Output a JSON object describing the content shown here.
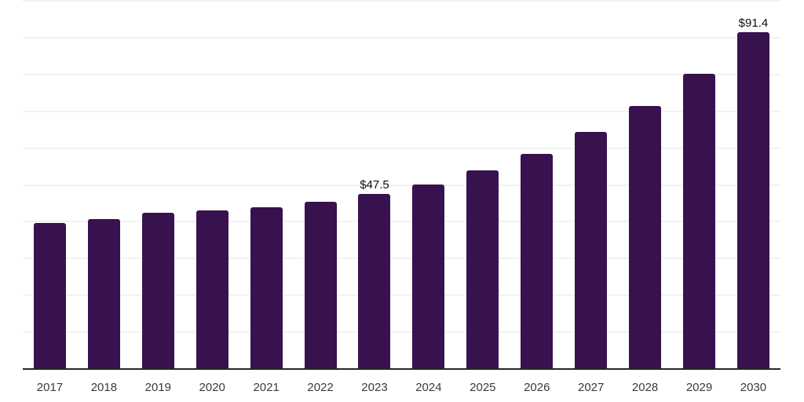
{
  "chart": {
    "background_color": "#ffffff",
    "bar_color": "#38124E",
    "gridline_color": "#f2f2f2",
    "axis_line_color": "#262626",
    "x_label_color": "#3a3a3a",
    "data_label_color": "#0d0d0d"
  },
  "chart_data": {
    "type": "bar",
    "title": "",
    "xlabel": "",
    "ylabel": "",
    "categories": [
      "2017",
      "2018",
      "2019",
      "2020",
      "2021",
      "2022",
      "2023",
      "2024",
      "2025",
      "2026",
      "2027",
      "2028",
      "2029",
      "2030"
    ],
    "values": [
      39.7,
      40.7,
      42.4,
      43.1,
      44.0,
      45.4,
      47.5,
      50.1,
      53.9,
      58.4,
      64.3,
      71.4,
      80.1,
      91.4
    ],
    "data_labels": [
      "",
      "",
      "",
      "",
      "",
      "",
      "$47.5",
      "",
      "",
      "",
      "",
      "",
      "",
      "$91.4"
    ],
    "ylim": [
      0,
      100
    ],
    "gridline_interval": 10,
    "grid": true,
    "legend": false,
    "y_axis_tick_labels_visible": false
  }
}
